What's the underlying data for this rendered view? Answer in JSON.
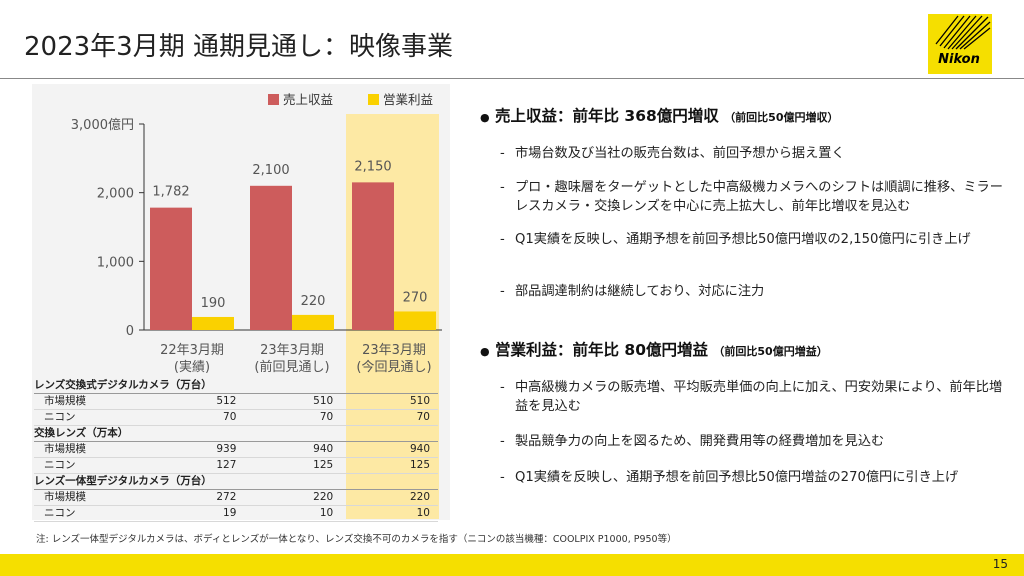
{
  "header": {
    "title": "2023年3月期 通期見通し：映像事業",
    "logo_text": "Nikon"
  },
  "chart_data": {
    "type": "bar",
    "categories": [
      [
        "22年3月期",
        "(実績)"
      ],
      [
        "23年3月期",
        "(前回見通し)"
      ],
      [
        "23年3月期",
        "(今回見通し)"
      ]
    ],
    "series": [
      {
        "name": "売上収益",
        "values": [
          1782,
          2100,
          2150
        ],
        "labels": [
          "1,782",
          "2,100",
          "2,150"
        ]
      },
      {
        "name": "営業利益",
        "values": [
          190,
          220,
          270
        ],
        "labels": [
          "190",
          "220",
          "270"
        ]
      }
    ],
    "yticks": [
      "0",
      "1,000",
      "2,000",
      "3,000億円"
    ],
    "ylim": [
      0,
      3000
    ],
    "legend": "top",
    "colors": {
      "revenue": "#cd5c5c",
      "profit": "#fad100"
    }
  },
  "table": {
    "groups": [
      {
        "title": "レンズ交換式デジタルカメラ（万台）",
        "rows": [
          {
            "label": "市場規模",
            "values": [
              "512",
              "510",
              "510"
            ]
          },
          {
            "label": "ニコン",
            "values": [
              "70",
              "70",
              "70"
            ]
          }
        ]
      },
      {
        "title": "交換レンズ（万本）",
        "rows": [
          {
            "label": "市場規模",
            "values": [
              "939",
              "940",
              "940"
            ]
          },
          {
            "label": "ニコン",
            "values": [
              "127",
              "125",
              "125"
            ]
          }
        ]
      },
      {
        "title": "レンズ一体型デジタルカメラ（万台）",
        "rows": [
          {
            "label": "市場規模",
            "values": [
              "272",
              "220",
              "220"
            ]
          },
          {
            "label": "ニコン",
            "values": [
              "19",
              "10",
              "10"
            ]
          }
        ]
      }
    ]
  },
  "footnote": "注: レンズ一体型デジタルカメラは、ボディとレンズが一体となり、レンズ交換不可のカメラを指す（ニコンの該当機種：COOLPIX P1000, P950等）",
  "revenue": {
    "heading": "売上収益：前年比 368億円増収",
    "note": "（前回比50億円増収）",
    "points": [
      "市場台数及び当社の販売台数は、前回予想から据え置く",
      "プロ・趣味層をターゲットとした中高級機カメラへのシフトは順調に推移、ミラーレスカメラ・交換レンズを中心に売上拡大し、前年比増収を見込む",
      "Q1実績を反映し、通期予想を前回予想比50億円増収の2,150億円に引き上げ",
      "部品調達制約は継続しており、対応に注力"
    ]
  },
  "profit": {
    "heading": "営業利益：前年比 80億円増益",
    "note": "（前回比50億円増益）",
    "points": [
      "中高級機カメラの販売増、平均販売単価の向上に加え、円安効果により、前年比増益を見込む",
      "製品競争力の向上を図るため、開発費用等の経費増加を見込む",
      "Q1実績を反映し、通期予想を前回予想比50億円増益の270億円に引き上げ"
    ]
  },
  "bullet_symbol": "●",
  "dash_symbol": "-",
  "page_number": "15"
}
